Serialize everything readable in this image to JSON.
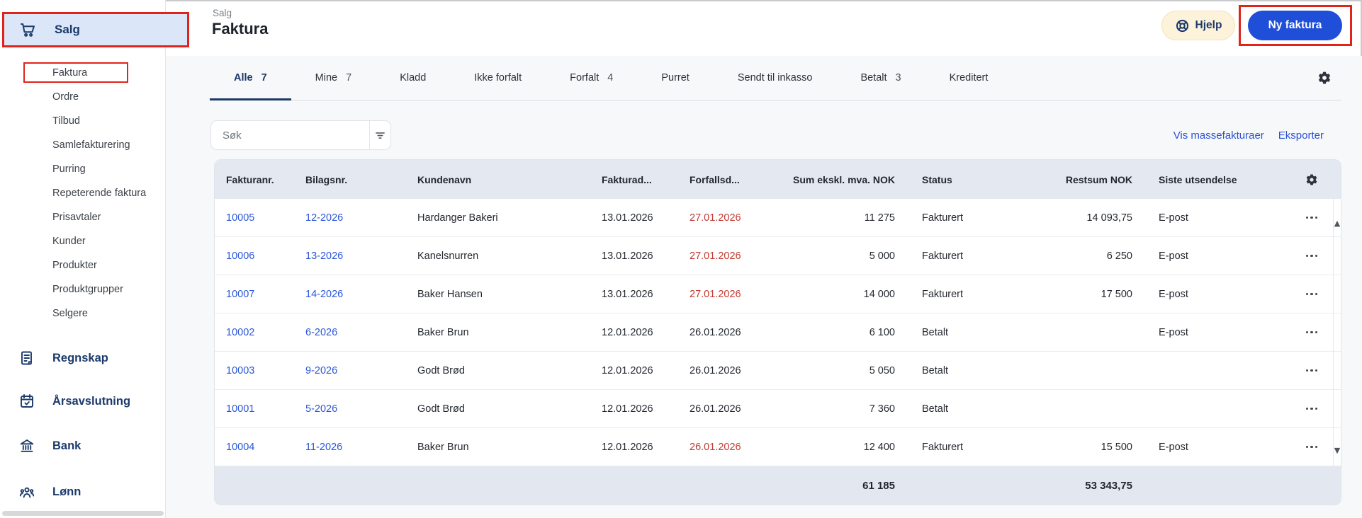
{
  "header": {
    "breadcrumb": "Salg",
    "title": "Faktura",
    "help_button": "Hjelp",
    "new_invoice_button": "Ny faktura"
  },
  "sidebar": {
    "active_section": {
      "label": "Salg",
      "icon": "cart-icon",
      "annotated": true
    },
    "submenu": [
      {
        "label": "Faktura",
        "annotated": true
      },
      {
        "label": "Ordre"
      },
      {
        "label": "Tilbud"
      },
      {
        "label": "Samlefakturering"
      },
      {
        "label": "Purring"
      },
      {
        "label": "Repeterende faktura"
      },
      {
        "label": "Prisavtaler"
      },
      {
        "label": "Kunder"
      },
      {
        "label": "Produkter"
      },
      {
        "label": "Produktgrupper"
      },
      {
        "label": "Selgere"
      }
    ],
    "sections": [
      {
        "label": "Regnskap",
        "icon": "ledger-icon"
      },
      {
        "label": "Årsavslutning",
        "icon": "calendar-check-icon"
      },
      {
        "label": "Bank",
        "icon": "bank-icon"
      },
      {
        "label": "Lønn",
        "icon": "people-icon"
      }
    ]
  },
  "tabs": [
    {
      "label": "Alle",
      "count": "7",
      "active": true
    },
    {
      "label": "Mine",
      "count": "7"
    },
    {
      "label": "Kladd"
    },
    {
      "label": "Ikke forfalt"
    },
    {
      "label": "Forfalt",
      "count": "4"
    },
    {
      "label": "Purret"
    },
    {
      "label": "Sendt til inkasso"
    },
    {
      "label": "Betalt",
      "count": "3"
    },
    {
      "label": "Kreditert"
    }
  ],
  "toolbar": {
    "search_placeholder": "Søk",
    "bulk_invoices_link": "Vis massefakturaer",
    "export_link": "Eksporter"
  },
  "table": {
    "columns": [
      "Fakturanr.",
      "Bilagsnr.",
      "Kundenavn",
      "Fakturad...",
      "Forfallsd...",
      "Sum ekskl. mva. NOK",
      "Status",
      "Restsum NOK",
      "Siste utsendelse"
    ],
    "rows": [
      {
        "invoice_no": "10005",
        "voucher_no": "12-2026",
        "customer": "Hardanger Bakeri",
        "invoice_date": "13.01.2026",
        "due_date": "27.01.2026",
        "overdue": true,
        "sum_excl_vat": "11 275",
        "status": "Fakturert",
        "outstanding": "14 093,75",
        "last_sent": "E-post"
      },
      {
        "invoice_no": "10006",
        "voucher_no": "13-2026",
        "customer": "Kanelsnurren",
        "invoice_date": "13.01.2026",
        "due_date": "27.01.2026",
        "overdue": true,
        "sum_excl_vat": "5 000",
        "status": "Fakturert",
        "outstanding": "6 250",
        "last_sent": "E-post"
      },
      {
        "invoice_no": "10007",
        "voucher_no": "14-2026",
        "customer": "Baker Hansen",
        "invoice_date": "13.01.2026",
        "due_date": "27.01.2026",
        "overdue": true,
        "sum_excl_vat": "14 000",
        "status": "Fakturert",
        "outstanding": "17 500",
        "last_sent": "E-post"
      },
      {
        "invoice_no": "10002",
        "voucher_no": "6-2026",
        "customer": "Baker Brun",
        "invoice_date": "12.01.2026",
        "due_date": "26.01.2026",
        "overdue": false,
        "sum_excl_vat": "6 100",
        "status": "Betalt",
        "outstanding": "",
        "last_sent": "E-post"
      },
      {
        "invoice_no": "10003",
        "voucher_no": "9-2026",
        "customer": "Godt Brød",
        "invoice_date": "12.01.2026",
        "due_date": "26.01.2026",
        "overdue": false,
        "sum_excl_vat": "5 050",
        "status": "Betalt",
        "outstanding": "",
        "last_sent": ""
      },
      {
        "invoice_no": "10001",
        "voucher_no": "5-2026",
        "customer": "Godt Brød",
        "invoice_date": "12.01.2026",
        "due_date": "26.01.2026",
        "overdue": false,
        "sum_excl_vat": "7 360",
        "status": "Betalt",
        "outstanding": "",
        "last_sent": ""
      },
      {
        "invoice_no": "10004",
        "voucher_no": "11-2026",
        "customer": "Baker Brun",
        "invoice_date": "12.01.2026",
        "due_date": "26.01.2026",
        "overdue": true,
        "sum_excl_vat": "12 400",
        "status": "Fakturert",
        "outstanding": "15 500",
        "last_sent": "E-post"
      }
    ],
    "totals": {
      "sum_excl_vat": "61 185",
      "outstanding": "53 343,75"
    }
  },
  "colors": {
    "accent_blue": "#1f4ed8",
    "link_blue": "#2a52d4",
    "navy": "#1b3a6b",
    "overdue_red": "#c23a31",
    "annotation_red": "#e0241c",
    "selected_item_bg": "#dbe7f8",
    "help_button_bg": "#fcf3da",
    "table_header_bg": "#e4e9f1"
  }
}
